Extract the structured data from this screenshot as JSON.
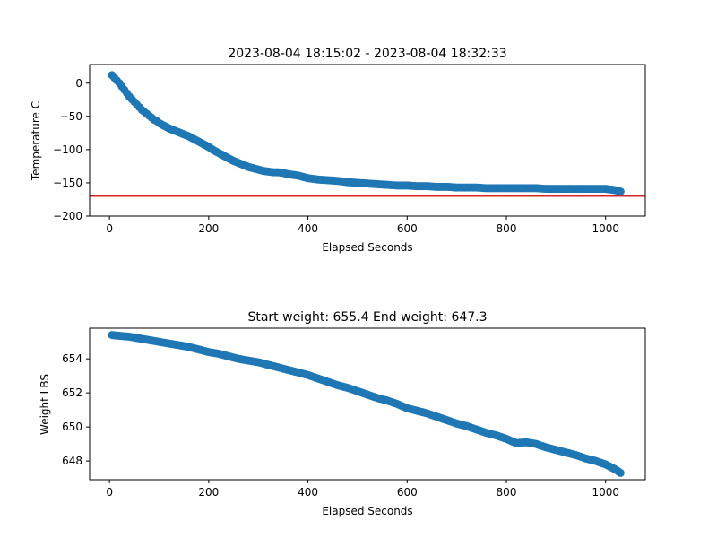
{
  "chart_data": [
    {
      "type": "scatter",
      "title": "2023-08-04 18:15:02 - 2023-08-04 18:32:33",
      "xlabel": "Elapsed Seconds",
      "ylabel": "Temperature C",
      "xlim": [
        -40,
        1080
      ],
      "ylim": [
        -200,
        28
      ],
      "xticks": [
        0,
        200,
        400,
        600,
        800,
        1000
      ],
      "yticks": [
        0,
        -50,
        -100,
        -150,
        -200
      ],
      "marker_color": "#1f77b4",
      "reference_line": {
        "y": -170,
        "color": "#d62728"
      },
      "grid": false,
      "series": [
        {
          "x": [
            5,
            10,
            15,
            20,
            25,
            30,
            35,
            40,
            45,
            50,
            55,
            60,
            65,
            70,
            75,
            80,
            85,
            90,
            95,
            100,
            110,
            120,
            130,
            140,
            150,
            160,
            170,
            180,
            190,
            200,
            210,
            220,
            230,
            240,
            250,
            260,
            270,
            280,
            290,
            300,
            310,
            320,
            330,
            340,
            350,
            360,
            370,
            380,
            390,
            400,
            420,
            440,
            460,
            480,
            500,
            520,
            540,
            560,
            580,
            600,
            620,
            640,
            660,
            680,
            700,
            720,
            740,
            760,
            780,
            800,
            820,
            840,
            860,
            880,
            900,
            920,
            940,
            960,
            980,
            1000,
            1010,
            1020,
            1030
          ],
          "y": [
            12,
            8,
            4,
            0,
            -5,
            -10,
            -15,
            -20,
            -24,
            -28,
            -32,
            -36,
            -40,
            -43,
            -46,
            -49,
            -52,
            -55,
            -57,
            -60,
            -64,
            -68,
            -71,
            -74,
            -77,
            -80,
            -84,
            -88,
            -92,
            -96,
            -101,
            -105,
            -109,
            -113,
            -117,
            -120,
            -123,
            -126,
            -128,
            -130,
            -132,
            -133,
            -134,
            -134,
            -135,
            -137,
            -138,
            -139,
            -141,
            -143,
            -145,
            -146,
            -147,
            -149,
            -150,
            -151,
            -152,
            -153,
            -154,
            -154,
            -155,
            -155,
            -156,
            -156,
            -157,
            -157,
            -157,
            -158,
            -158,
            -158,
            -158,
            -158,
            -158,
            -159,
            -159,
            -159,
            -159,
            -159,
            -159,
            -159,
            -160,
            -161,
            -163
          ]
        }
      ]
    },
    {
      "type": "scatter",
      "title": "Start weight: 655.4 End weight: 647.3",
      "xlabel": "Elapsed Seconds",
      "ylabel": "Weight LBS",
      "xlim": [
        -40,
        1080
      ],
      "ylim": [
        646.9,
        655.8
      ],
      "xticks": [
        0,
        200,
        400,
        600,
        800,
        1000
      ],
      "yticks": [
        648,
        650,
        652,
        654
      ],
      "marker_color": "#1f77b4",
      "grid": false,
      "series": [
        {
          "x": [
            5,
            20,
            40,
            60,
            80,
            100,
            120,
            140,
            160,
            180,
            200,
            220,
            240,
            260,
            280,
            300,
            320,
            340,
            360,
            380,
            400,
            420,
            440,
            460,
            480,
            500,
            520,
            540,
            560,
            580,
            600,
            620,
            640,
            660,
            680,
            700,
            720,
            740,
            760,
            780,
            800,
            820,
            840,
            860,
            880,
            900,
            920,
            940,
            960,
            980,
            1000,
            1020,
            1030
          ],
          "y": [
            655.4,
            655.35,
            655.3,
            655.2,
            655.1,
            655.0,
            654.9,
            654.8,
            654.7,
            654.55,
            654.4,
            654.3,
            654.15,
            654.0,
            653.9,
            653.8,
            653.65,
            653.5,
            653.35,
            653.2,
            653.05,
            652.85,
            652.65,
            652.45,
            652.3,
            652.1,
            651.9,
            651.7,
            651.55,
            651.35,
            651.1,
            650.95,
            650.8,
            650.6,
            650.4,
            650.2,
            650.05,
            649.85,
            649.65,
            649.5,
            649.3,
            649.05,
            649.1,
            649.0,
            648.8,
            648.65,
            648.5,
            648.35,
            648.15,
            648.0,
            647.8,
            647.5,
            647.3
          ]
        }
      ]
    }
  ]
}
